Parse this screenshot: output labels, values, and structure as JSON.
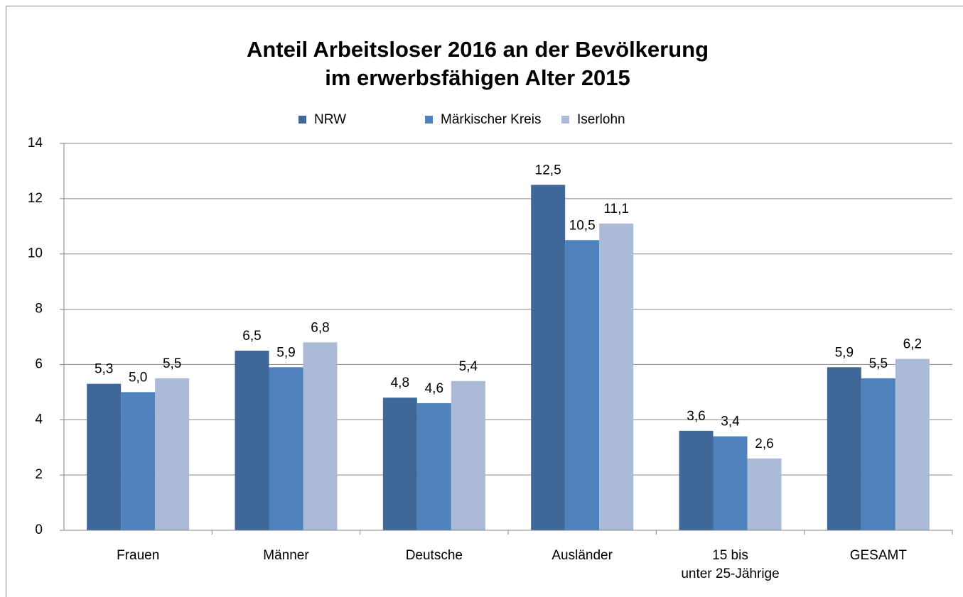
{
  "chart_data": {
    "type": "bar",
    "title": "Anteil Arbeitsloser 2016 an der Bevölkerung\nim erwerbsfähigen Alter 2015",
    "categories": [
      "Frauen",
      "Männer",
      "Deutsche",
      "Ausländer",
      "15 bis\nunter 25-Jährige",
      "GESAMT"
    ],
    "series": [
      {
        "name": "NRW",
        "color": "#3f6898",
        "values": [
          5.3,
          6.5,
          4.8,
          12.5,
          3.6,
          5.9
        ],
        "value_labels": [
          "5,3",
          "6,5",
          "4,8",
          "12,5",
          "3,6",
          "5,9"
        ]
      },
      {
        "name": "Märkischer Kreis",
        "color": "#4f81bd",
        "values": [
          5.0,
          5.9,
          4.6,
          10.5,
          3.4,
          5.5
        ],
        "value_labels": [
          "5,0",
          "5,9",
          "4,6",
          "10,5",
          "3,4",
          "5,5"
        ]
      },
      {
        "name": "Iserlohn",
        "color": "#aabad7",
        "values": [
          5.5,
          6.8,
          5.4,
          11.1,
          2.6,
          6.2
        ],
        "value_labels": [
          "5,5",
          "6,8",
          "5,4",
          "11,1",
          "2,6",
          "6,2"
        ]
      }
    ],
    "ylim": [
      0,
      14
    ],
    "yticks": [
      0,
      2,
      4,
      6,
      8,
      10,
      12,
      14
    ],
    "grid": true,
    "legend": "top"
  }
}
